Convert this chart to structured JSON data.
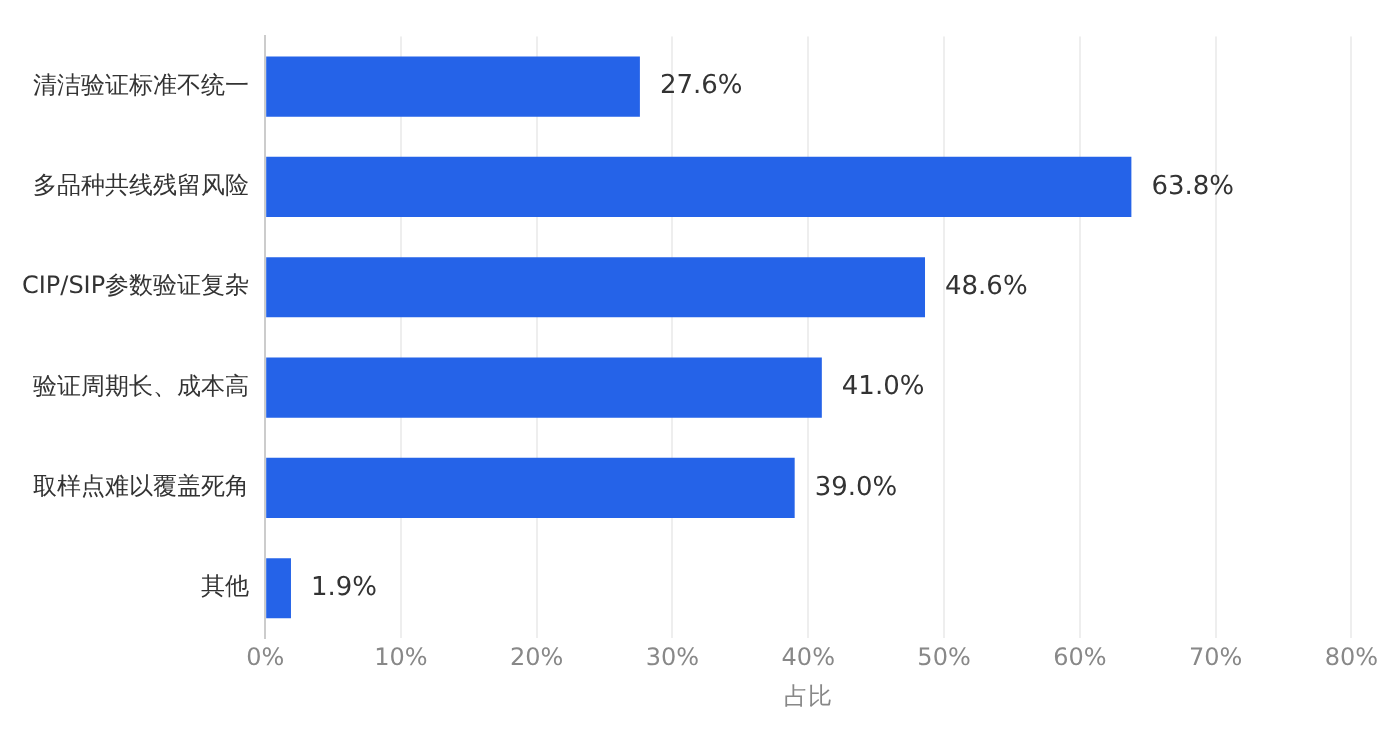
{
  "chart_data": {
    "type": "bar",
    "orientation": "horizontal",
    "xlabel": "占比",
    "categories": [
      "清洁验证标准不统一",
      "多品种共线残留风险",
      "CIP/SIP参数验证复杂",
      "验证周期长、成本高",
      "取样点难以覆盖死角",
      "其他"
    ],
    "values": [
      27.6,
      63.8,
      48.6,
      41.0,
      39.0,
      1.9
    ],
    "value_labels": [
      "27.6%",
      "63.8%",
      "48.6%",
      "41.0%",
      "39.0%",
      "1.9%"
    ],
    "color": "#2563e8",
    "xlim": [
      0,
      80
    ],
    "xticks": [
      {
        "value": 0,
        "label": "0%"
      },
      {
        "value": 10,
        "label": "10%"
      },
      {
        "value": 20,
        "label": "20%"
      },
      {
        "value": 30,
        "label": "30%"
      },
      {
        "value": 40,
        "label": "40%"
      },
      {
        "value": 50,
        "label": "50%"
      },
      {
        "value": 60,
        "label": "60%"
      },
      {
        "value": 70,
        "label": "70%"
      },
      {
        "value": 80,
        "label": "80%"
      }
    ],
    "grid": "x"
  }
}
